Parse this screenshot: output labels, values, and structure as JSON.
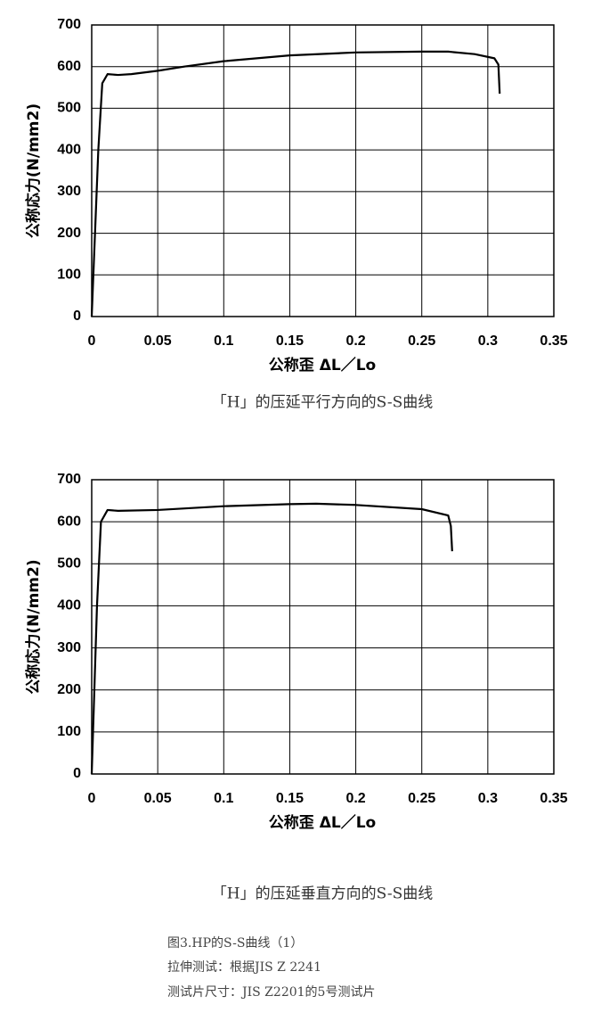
{
  "chart_data": [
    {
      "type": "line",
      "caption": "「H」的压延平行方向的S-S曲线",
      "x_label": "公称歪  ΔL／Lo",
      "y_label": "公称応力(N/mm2)",
      "x": [
        0,
        0.005,
        0.008,
        0.012,
        0.02,
        0.03,
        0.05,
        0.07,
        0.1,
        0.15,
        0.2,
        0.25,
        0.27,
        0.29,
        0.305,
        0.308,
        0.309
      ],
      "series": [
        {
          "color": "#000000",
          "values": [
            0,
            400,
            560,
            582,
            580,
            582,
            590,
            600,
            613,
            627,
            634,
            636,
            636,
            630,
            620,
            605,
            535
          ]
        }
      ],
      "xlim": [
        0,
        0.35
      ],
      "xticks": [
        0,
        0.05,
        0.1,
        0.15,
        0.2,
        0.25,
        0.3,
        0.35
      ],
      "ylim": [
        0,
        700
      ],
      "yticks": [
        0,
        100,
        200,
        300,
        400,
        500,
        600,
        700
      ],
      "grid": true
    },
    {
      "type": "line",
      "caption": "「H」的压延垂直方向的S-S曲线",
      "x_label": "公称歪  ΔL／Lo",
      "y_label": "公称応力(N/mm2)",
      "x": [
        0,
        0.004,
        0.007,
        0.012,
        0.02,
        0.05,
        0.1,
        0.15,
        0.17,
        0.2,
        0.25,
        0.27,
        0.272,
        0.273
      ],
      "series": [
        {
          "color": "#000000",
          "values": [
            0,
            400,
            600,
            628,
            626,
            628,
            637,
            642,
            643,
            640,
            630,
            615,
            590,
            530
          ]
        }
      ],
      "xlim": [
        0,
        0.35
      ],
      "xticks": [
        0,
        0.05,
        0.1,
        0.15,
        0.2,
        0.25,
        0.3,
        0.35
      ],
      "ylim": [
        0,
        700
      ],
      "yticks": [
        0,
        100,
        200,
        300,
        400,
        500,
        600,
        700
      ],
      "grid": true
    }
  ],
  "notes": [
    "图3.HP的S-S曲线（1）",
    "拉伸测试：根据JIS Z 2241",
    "测试片尺寸：JIS Z2201的5号测试片"
  ]
}
